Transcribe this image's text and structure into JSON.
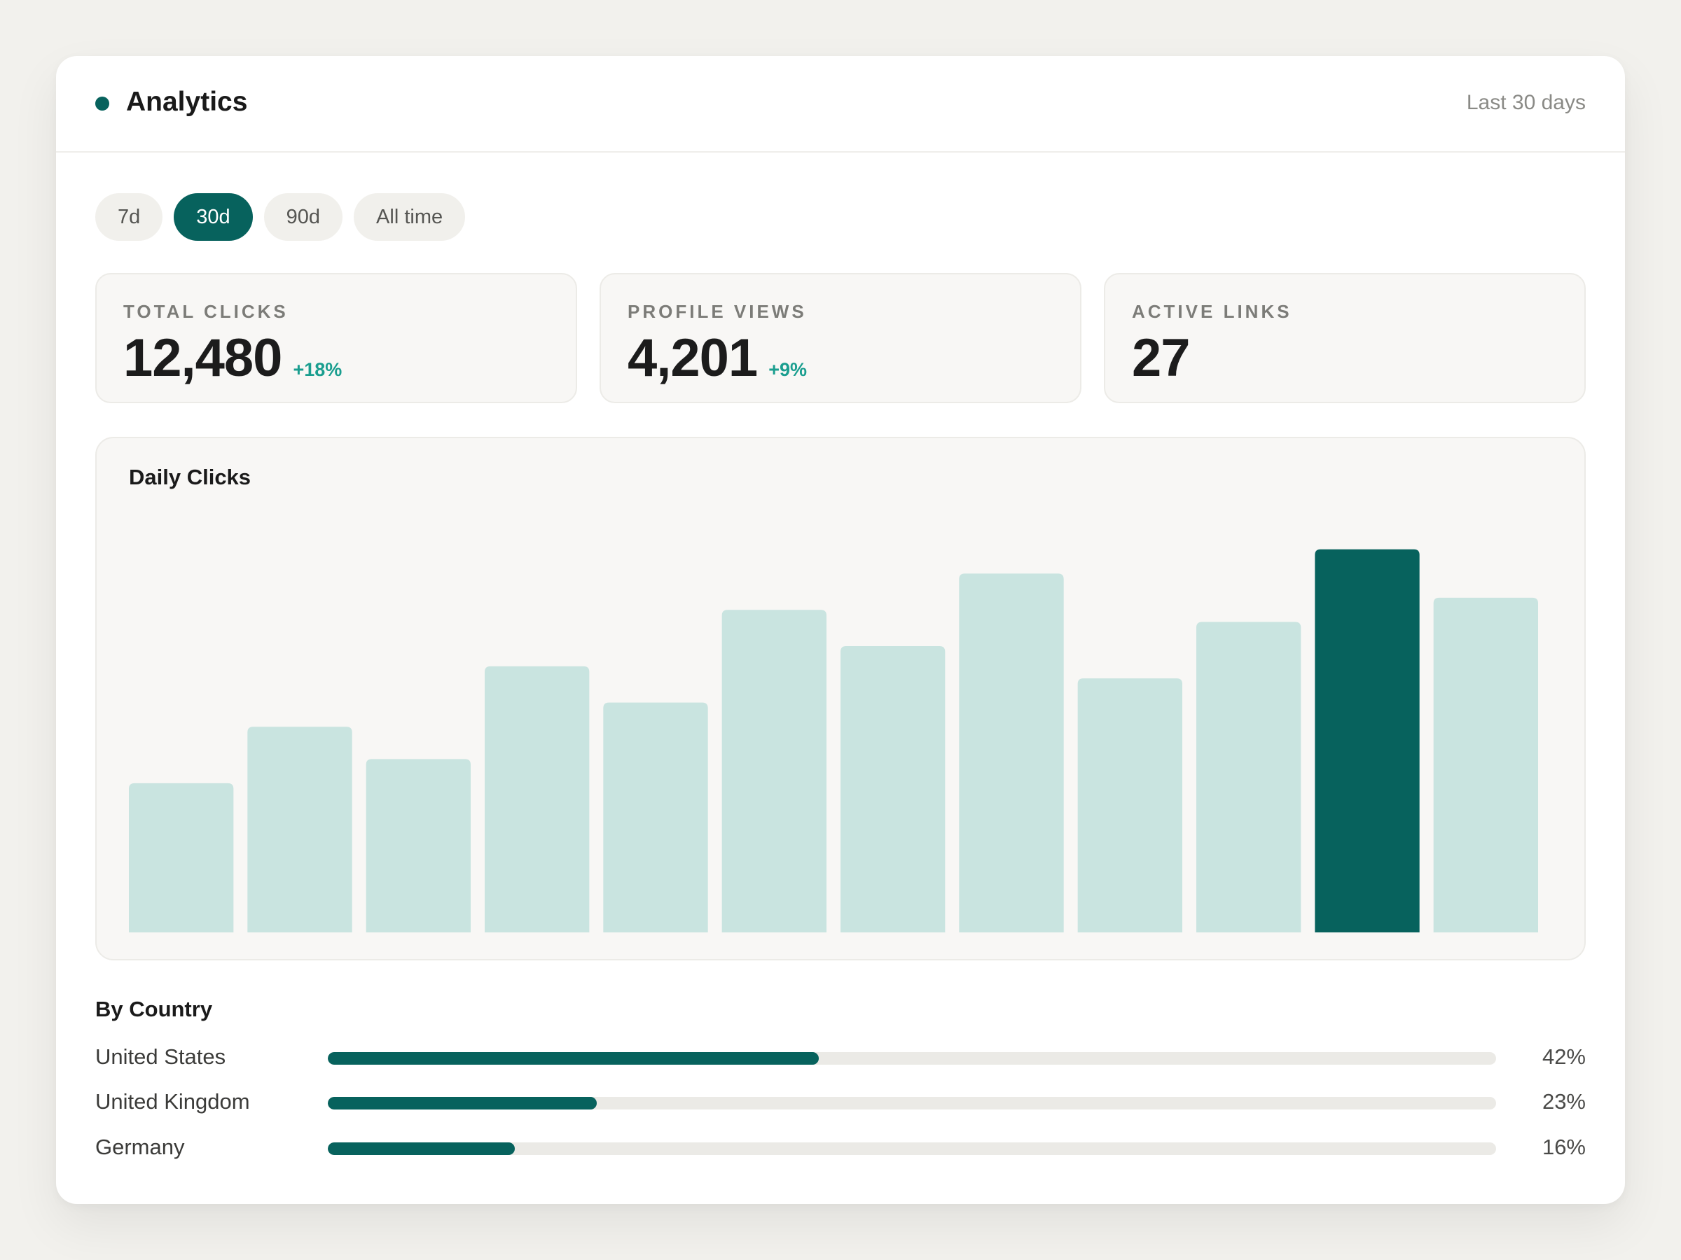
{
  "colors": {
    "accent": "#07625d",
    "bar_light": "#c9e4e0",
    "positive": "#1a9e8f"
  },
  "header": {
    "title": "Analytics",
    "period": "Last 30 days"
  },
  "range_tabs": [
    {
      "label": "7d",
      "active": false
    },
    {
      "label": "30d",
      "active": true
    },
    {
      "label": "90d",
      "active": false
    },
    {
      "label": "All time",
      "active": false
    }
  ],
  "stats": [
    {
      "label": "Total Clicks",
      "value": "12,480",
      "delta": "+18%"
    },
    {
      "label": "Profile Views",
      "value": "4,201",
      "delta": "+9%"
    },
    {
      "label": "Active Links",
      "value": "27",
      "delta": ""
    }
  ],
  "chart_data": {
    "type": "bar",
    "title": "Daily Clicks",
    "values": [
      37,
      51,
      43,
      66,
      57,
      80,
      71,
      89,
      63,
      77,
      95,
      83
    ],
    "highlight_index": 10,
    "ylim": [
      0,
      100
    ],
    "grid": false,
    "axes_visible": false
  },
  "by_country": {
    "title": "By Country",
    "rows": [
      {
        "name": "United States",
        "percent_label": "42%",
        "fraction": 0.42
      },
      {
        "name": "United Kingdom",
        "percent_label": "23%",
        "fraction": 0.23
      },
      {
        "name": "Germany",
        "percent_label": "16%",
        "fraction": 0.16
      }
    ]
  }
}
